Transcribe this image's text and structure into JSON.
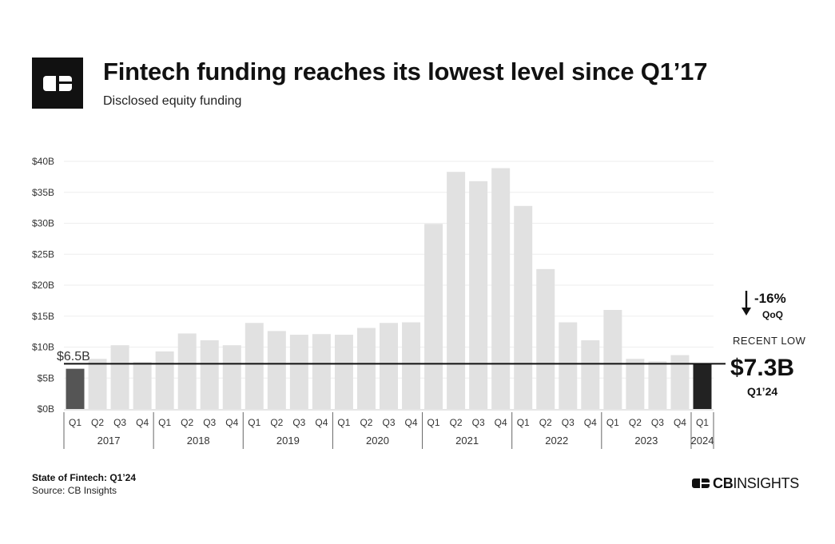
{
  "header": {
    "title": "Fintech funding reaches its lowest level since Q1’17",
    "subtitle": "Disclosed  equity funding"
  },
  "chart_data": {
    "type": "bar",
    "title": "Fintech funding reaches its lowest level since Q1’17",
    "subtitle": "Disclosed equity funding",
    "ylabel": "",
    "xlabel": "",
    "unit": "$B",
    "ylim": [
      0,
      40
    ],
    "yticks": [
      "$0B",
      "$5B",
      "$10B",
      "$15B",
      "$20B",
      "$25B",
      "$30B",
      "$35B",
      "$40B"
    ],
    "years": [
      {
        "label": "2017",
        "quarters": 4
      },
      {
        "label": "2018",
        "quarters": 4
      },
      {
        "label": "2019",
        "quarters": 4
      },
      {
        "label": "2020",
        "quarters": 4
      },
      {
        "label": "2021",
        "quarters": 4
      },
      {
        "label": "2022",
        "quarters": 4
      },
      {
        "label": "2023",
        "quarters": 4
      },
      {
        "label": "2024",
        "quarters": 1
      }
    ],
    "categories": [
      "Q1",
      "Q2",
      "Q3",
      "Q4",
      "Q1",
      "Q2",
      "Q3",
      "Q4",
      "Q1",
      "Q2",
      "Q3",
      "Q4",
      "Q1",
      "Q2",
      "Q3",
      "Q4",
      "Q1",
      "Q2",
      "Q3",
      "Q4",
      "Q1",
      "Q2",
      "Q3",
      "Q4",
      "Q1",
      "Q2",
      "Q3",
      "Q4",
      "Q1"
    ],
    "values": [
      6.5,
      8.1,
      10.3,
      7.6,
      9.3,
      12.2,
      11.1,
      10.3,
      13.9,
      12.6,
      12.0,
      12.1,
      12.0,
      13.1,
      13.9,
      14.0,
      29.9,
      38.3,
      36.8,
      38.9,
      32.8,
      22.6,
      14.0,
      11.1,
      16.0,
      8.1,
      7.7,
      8.7,
      7.3
    ],
    "reference_line": {
      "value": 7.3
    },
    "highlights": {
      "first": "dark-gray",
      "last": "black"
    },
    "annotations": {
      "first_label": "$6.5B",
      "change_value": "-16%",
      "change_label": "QoQ",
      "recent_label": "RECENT LOW",
      "recent_value": "$7.3B",
      "recent_period": "Q1’24"
    }
  },
  "colors": {
    "bar": "#e1e1e1",
    "first_bar": "#555555",
    "last_bar": "#222222",
    "line": "#111111",
    "grid": "#eeeeee",
    "axis_text": "#333333"
  },
  "footer": {
    "report": "State of Fintech: Q1’24",
    "source": "Source: CB Insights"
  },
  "brand": {
    "part1": "CB",
    "part2": "INSIGHTS",
    "icon": "cb-logo-icon"
  }
}
